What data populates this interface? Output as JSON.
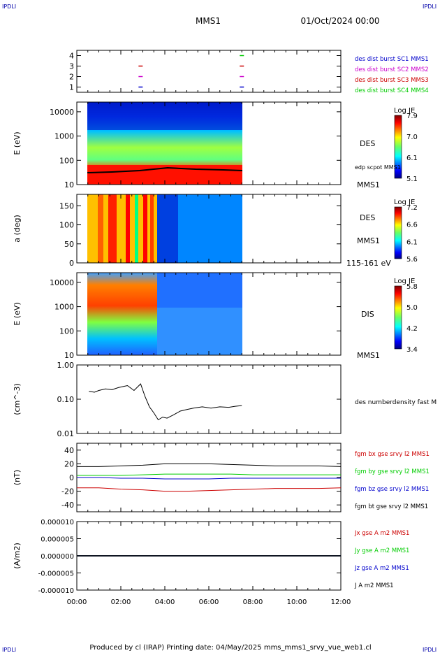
{
  "header": {
    "corner_left": "IPDLI",
    "corner_right": "IPDLI",
    "title": "MMS1",
    "date": "01/Oct/2024 00:00"
  },
  "footer": {
    "text": "Produced by cl (IRAP)   Printing date: 04/May/2025   mms_mms1_srvy_vue_web1.cl",
    "corner_left": "IPDLI",
    "corner_right": "IPDLI"
  },
  "colors": {
    "red": "#cc0000",
    "green": "#00cc00",
    "blue": "#0000cc",
    "magenta": "#cc00cc",
    "black": "#000000"
  },
  "chart_data": [
    {
      "type": "scatter",
      "panel": "burst",
      "ylim": [
        0.5,
        4.5
      ],
      "yticks": [
        "1",
        "2",
        "3",
        "4"
      ],
      "legend": [
        {
          "name": "des dist burst SC1 MMS1",
          "color": "#0000cc"
        },
        {
          "name": "des dist burst SC2 MMS2",
          "color": "#cc00cc"
        },
        {
          "name": "des dist burst SC3 MMS3",
          "color": "#cc0000"
        },
        {
          "name": "des dist burst SC4 MMS4",
          "color": "#00cc00"
        }
      ],
      "marks": [
        {
          "x": 2.9,
          "y": 1,
          "color": "#0000cc"
        },
        {
          "x": 2.9,
          "y": 2,
          "color": "#cc00cc"
        },
        {
          "x": 2.9,
          "y": 3,
          "color": "#cc0000"
        },
        {
          "x": 7.5,
          "y": 1,
          "color": "#0000cc"
        },
        {
          "x": 7.5,
          "y": 2,
          "color": "#cc00cc"
        },
        {
          "x": 7.5,
          "y": 3,
          "color": "#cc0000"
        },
        {
          "x": 7.5,
          "y": 4,
          "color": "#00cc00"
        }
      ]
    },
    {
      "type": "heatmap",
      "panel": "des-energy",
      "ylabel": "E (eV)",
      "yticks": [
        "10",
        "100",
        "1000",
        "10000"
      ],
      "labels": [
        "DES",
        "edp scpot MMS1",
        "MMS1"
      ],
      "colorbar": {
        "title": "Log JE",
        "ticks": [
          "7.9",
          "7.0",
          "6.1",
          "5.1"
        ]
      },
      "data_x_range": [
        0.45,
        7.5
      ]
    },
    {
      "type": "heatmap",
      "panel": "des-pitch",
      "ylabel": "a (deg)",
      "yticks": [
        "0",
        "50",
        "100",
        "150"
      ],
      "labels": [
        "DES",
        "MMS1",
        "115-161 eV"
      ],
      "colorbar": {
        "title": "Log JE",
        "ticks": [
          "7.2",
          "6.6",
          "6.1",
          "5.6"
        ]
      },
      "data_x_range": [
        0.45,
        7.5
      ]
    },
    {
      "type": "heatmap",
      "panel": "dis-energy",
      "ylabel": "E (eV)",
      "yticks": [
        "10",
        "100",
        "1000",
        "10000"
      ],
      "labels": [
        "DIS",
        "MMS1"
      ],
      "colorbar": {
        "title": "Log JE",
        "ticks": [
          "5.8",
          "5.0",
          "4.2",
          "3.4"
        ]
      },
      "data_x_range": [
        0.45,
        7.5
      ]
    },
    {
      "type": "line",
      "panel": "density",
      "ylabel": "(cm^-3)",
      "yticks": [
        "0.01",
        "0.10",
        "1.00"
      ],
      "series": [
        {
          "name": "des numberdensity fast M",
          "color": "#000000",
          "x": [
            0.55,
            0.8,
            1.0,
            1.3,
            1.6,
            1.9,
            2.3,
            2.6,
            2.9,
            3.1,
            3.3,
            3.5,
            3.7,
            3.9,
            4.1,
            4.4,
            4.7,
            5.0,
            5.3,
            5.7,
            6.1,
            6.5,
            6.9,
            7.2,
            7.5
          ],
          "y": [
            0.17,
            0.16,
            0.18,
            0.2,
            0.19,
            0.22,
            0.25,
            0.18,
            0.28,
            0.12,
            0.06,
            0.04,
            0.025,
            0.03,
            0.028,
            0.035,
            0.045,
            0.05,
            0.055,
            0.06,
            0.055,
            0.06,
            0.058,
            0.062,
            0.065
          ]
        }
      ]
    },
    {
      "type": "line",
      "panel": "fgm",
      "ylabel": "(nT)",
      "yticks": [
        "-40",
        "-20",
        "0",
        "20",
        "40"
      ],
      "series": [
        {
          "name": "fgm bx gse srvy l2 MMS1",
          "color": "#cc0000",
          "x": [
            0,
            1,
            2,
            3,
            4,
            5,
            6,
            7,
            8,
            9,
            10,
            11,
            12
          ],
          "y": [
            -15,
            -15,
            -17,
            -18,
            -20,
            -20,
            -19,
            -18,
            -17,
            -16,
            -16,
            -16,
            -15
          ]
        },
        {
          "name": "fgm by gse srvy l2 MMS1",
          "color": "#00cc00",
          "x": [
            0,
            1,
            2,
            3,
            4,
            5,
            6,
            7,
            8,
            9,
            10,
            11,
            12
          ],
          "y": [
            3,
            3,
            3,
            4,
            5,
            5,
            5,
            5,
            4,
            4,
            4,
            4,
            4
          ]
        },
        {
          "name": "fgm bz gse srvy l2 MMS1",
          "color": "#0000cc",
          "x": [
            0,
            1,
            2,
            3,
            4,
            5,
            6,
            7,
            8,
            9,
            10,
            11,
            12
          ],
          "y": [
            0,
            0,
            -1,
            -1,
            -2,
            -2,
            -2,
            -1,
            -1,
            -1,
            -1,
            -1,
            -1
          ]
        },
        {
          "name": "fgm bt gse srvy l2 MMS1",
          "color": "#000000",
          "x": [
            0,
            1,
            2,
            3,
            4,
            5,
            6,
            7,
            8,
            9,
            10,
            11,
            12
          ],
          "y": [
            16,
            16,
            17,
            18,
            20,
            20,
            20,
            19,
            18,
            17,
            17,
            17,
            16
          ]
        }
      ]
    },
    {
      "type": "line",
      "panel": "current",
      "ylabel": "(A/m2)",
      "yticks": [
        "-0.000010",
        "-0.000005",
        "0.000000",
        "0.000005",
        "0.000010"
      ],
      "series": [
        {
          "name": "Jx gse A m2 MMS1",
          "color": "#cc0000",
          "x": [
            0,
            12
          ],
          "y": [
            0,
            0
          ]
        },
        {
          "name": "Jy gse A m2 MMS1",
          "color": "#00cc00",
          "x": [
            0,
            12
          ],
          "y": [
            0,
            0
          ]
        },
        {
          "name": "Jz gse A m2 MMS1",
          "color": "#0000cc",
          "x": [
            0,
            12
          ],
          "y": [
            0,
            0
          ]
        },
        {
          "name": "J A m2 MMS1",
          "color": "#000000",
          "x": [
            0,
            12
          ],
          "y": [
            0,
            0
          ]
        }
      ],
      "xticks": [
        "00:00",
        "02:00",
        "04:00",
        "06:00",
        "08:00",
        "10:00",
        "12:00"
      ]
    }
  ]
}
